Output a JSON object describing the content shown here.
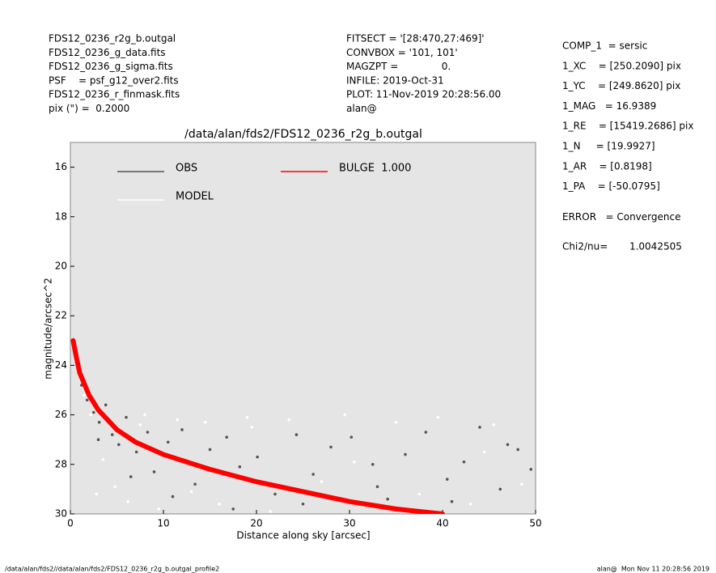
{
  "header": {
    "left": [
      "FDS12_0236_r2g_b.outgal",
      "FDS12_0236_g_data.fits",
      "FDS12_0236_g_sigma.fits",
      "PSF    = psf_g12_over2.fits",
      "FDS12_0236_r_finmask.fits",
      "pix (\") =  0.2000"
    ],
    "middle": [
      "FITSECT = '[28:470,27:469]'",
      "CONVBOX = '101, 101'",
      "MAGZPT =              0.",
      "INFILE: 2019-Oct-31",
      "PLOT: 11-Nov-2019 20:28:56.00",
      "alan@"
    ],
    "right": [
      "COMP_1  = sersic",
      "1_XC    = [250.2090] pix",
      "1_YC    = [249.8620] pix",
      "1_MAG   = 16.9389",
      "1_RE    = [15419.2686] pix",
      "1_N     = [19.9927]",
      "1_AR    = [0.8198]",
      "1_PA    = [-50.0795]",
      "ERROR   = Convergence",
      "Chi2/nu=       1.0042505"
    ]
  },
  "footer": {
    "left": "/data/alan/fds2//data/alan/fds2/FDS12_0236_r2g_b.outgal_profile2",
    "right": "alan@  Mon Nov 11 20:28:56 2019"
  },
  "chart_data": {
    "type": "scatter",
    "title": "/data/alan/fds2/FDS12_0236_r2g_b.outgal",
    "x_label": "Distance along sky [arcsec]",
    "y_label": "magnitude/arcsec^2",
    "xlim": [
      0,
      50
    ],
    "xticks": [
      0,
      10,
      20,
      30,
      40,
      50
    ],
    "ylim": [
      30,
      15
    ],
    "yticks": [
      16,
      18,
      20,
      22,
      24,
      26,
      28,
      30
    ],
    "background": "#e5e5e5",
    "legend": "upper left",
    "series": [
      {
        "name": "OBS",
        "color": "#555555",
        "style": "points",
        "x": [
          1.2,
          1.8,
          2.5,
          3.1,
          3.8,
          4.5,
          5.2,
          6.0,
          7.1,
          8.3,
          9.0,
          10.5,
          12.0,
          13.4,
          15.0,
          16.8,
          18.2,
          20.1,
          22.0,
          24.3,
          26.1,
          28.0,
          30.2,
          32.5,
          34.1,
          36.0,
          38.2,
          40.5,
          42.3,
          44.0,
          46.2,
          48.1,
          49.5,
          3.0,
          6.5,
          11.0,
          17.5,
          25.0,
          33.0,
          41.0,
          47.0
        ],
        "values": [
          24.8,
          25.4,
          25.9,
          26.3,
          25.6,
          26.8,
          27.2,
          26.1,
          27.5,
          26.7,
          28.3,
          27.1,
          26.6,
          28.8,
          27.4,
          26.9,
          28.1,
          27.7,
          29.2,
          26.8,
          28.4,
          27.3,
          26.9,
          28.0,
          29.4,
          27.6,
          26.7,
          28.6,
          27.9,
          26.5,
          29.0,
          27.4,
          28.2,
          27.0,
          28.5,
          29.3,
          29.8,
          29.6,
          28.9,
          29.5,
          27.2
        ]
      },
      {
        "name": "MODEL",
        "color": "#ffffff",
        "style": "points",
        "x": [
          1.5,
          2.2,
          3.5,
          4.8,
          6.2,
          7.5,
          9.5,
          11.5,
          13.0,
          14.5,
          16.0,
          19.0,
          21.5,
          23.5,
          27.0,
          29.5,
          31.5,
          35.0,
          37.5,
          39.5,
          43.0,
          45.5,
          48.5,
          2.8,
          8.0,
          19.5,
          30.5,
          44.5
        ],
        "values": [
          25.2,
          26.0,
          27.8,
          28.9,
          29.5,
          26.4,
          29.8,
          26.2,
          29.1,
          26.3,
          29.6,
          26.1,
          29.9,
          26.2,
          28.7,
          26.0,
          29.7,
          26.3,
          29.2,
          26.1,
          29.6,
          26.4,
          28.8,
          29.2,
          26.0,
          26.5,
          27.9,
          27.5
        ]
      },
      {
        "name": "BULGE  1.000",
        "color": "#ff0000",
        "style": "line",
        "x": [
          0.3,
          0.6,
          1,
          2,
          3,
          5,
          7,
          10,
          15,
          20,
          25,
          30,
          35,
          40
        ],
        "values": [
          23.0,
          23.6,
          24.3,
          25.2,
          25.8,
          26.6,
          27.1,
          27.6,
          28.2,
          28.7,
          29.1,
          29.5,
          29.8,
          30.0
        ]
      }
    ]
  }
}
